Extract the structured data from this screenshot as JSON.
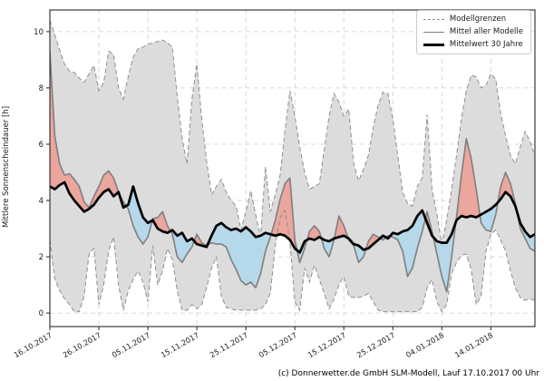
{
  "figure": {
    "y_axis_label": "Mittlere Sonnenscheindauer [h]",
    "credit": "(c) Donnerwetter.de GmbH SLM-Modell, Lauf 17.10.2017 00 Uhr"
  },
  "legend": {
    "position": "upper right",
    "items": [
      {
        "label": "Modellgrenzen",
        "style": "dashed-gray"
      },
      {
        "label": "Mittel aller Modelle",
        "style": "solid-gray"
      },
      {
        "label": "Mittelwert 30 Jahre",
        "style": "solid-black"
      }
    ]
  },
  "colors": {
    "band_fill": "#dcdcdc",
    "band_edge": "#8f8f8f",
    "above_fill": "#eba69e",
    "below_fill": "#b5d8ea",
    "model_mean_line": "#7f7f7f",
    "climate_line": "#000000",
    "grid": "#cdcdcd",
    "frame": "#262626",
    "text": "#1a1a1a"
  },
  "chart_data": {
    "type": "line",
    "title": "",
    "xlabel": "",
    "ylabel": "Mittlere Sonnenscheindauer [h]",
    "grid": true,
    "legend_position": "upper right",
    "x_unit": "days since 16.10.2017 (daily values)",
    "xlim": [
      0,
      99
    ],
    "ylim": [
      -0.48,
      10.77
    ],
    "y_ticks": [
      0,
      2,
      4,
      6,
      8,
      10
    ],
    "x_tick_days": [
      0,
      10,
      20,
      30,
      40,
      50,
      60,
      70,
      80,
      90
    ],
    "x_tick_labels": [
      "16.10.2017",
      "26.10.2017",
      "05.11.2017",
      "15.11.2017",
      "25.11.2017",
      "05.12.2017",
      "15.12.2017",
      "25.12.2017",
      "04.01.2018",
      "14.01.2018"
    ],
    "series": [
      {
        "name": "Modellgrenze oben",
        "role": "upper_bound",
        "style": "dashed",
        "values": [
          10.4,
          9.9,
          9.35,
          8.85,
          8.6,
          8.55,
          8.35,
          8.2,
          8.5,
          8.8,
          7.9,
          8.2,
          9.3,
          9.2,
          8.0,
          7.6,
          8.4,
          9.1,
          9.4,
          9.45,
          9.55,
          9.6,
          9.65,
          9.7,
          9.6,
          9.45,
          7.7,
          6.2,
          5.3,
          7.6,
          8.85,
          6.9,
          5.4,
          4.2,
          4.5,
          4.75,
          4.3,
          4.0,
          3.8,
          2.95,
          3.6,
          4.35,
          3.5,
          2.7,
          5.2,
          3.6,
          4.2,
          4.9,
          6.5,
          7.9,
          7.0,
          5.9,
          5.0,
          4.4,
          4.5,
          4.6,
          5.8,
          7.0,
          7.8,
          7.5,
          7.0,
          7.25,
          5.3,
          4.7,
          5.1,
          5.6,
          6.6,
          7.4,
          7.85,
          7.8,
          6.9,
          5.6,
          4.3,
          3.9,
          3.8,
          4.5,
          4.8,
          7.05,
          4.4,
          3.5,
          2.45,
          3.3,
          4.4,
          5.6,
          6.9,
          7.9,
          8.45,
          8.4,
          8.0,
          8.1,
          8.5,
          8.3,
          7.1,
          6.3,
          5.6,
          5.3,
          5.9,
          6.45,
          6.1,
          5.6
        ]
      },
      {
        "name": "Modellgrenze unten",
        "role": "lower_bound",
        "style": "dashed",
        "values": [
          2.6,
          1.2,
          0.8,
          0.5,
          0.3,
          0.05,
          0.05,
          0.6,
          2.1,
          2.3,
          0.3,
          1.0,
          2.2,
          2.7,
          1.0,
          0.1,
          0.8,
          1.2,
          1.5,
          1.1,
          0.4,
          2.4,
          1.0,
          1.5,
          2.3,
          1.9,
          0.8,
          0.1,
          0.1,
          0.3,
          0.15,
          0.3,
          0.9,
          1.6,
          2.0,
          0.6,
          0.2,
          0.15,
          0.1,
          0.1,
          0.1,
          0.1,
          0.1,
          0.15,
          0.3,
          0.7,
          2.4,
          3.4,
          3.65,
          2.5,
          0.4,
          0.1,
          1.6,
          1.1,
          1.7,
          1.2,
          0.7,
          0.15,
          0.5,
          1.0,
          1.3,
          0.6,
          0.55,
          0.55,
          0.6,
          0.7,
          0.4,
          0.1,
          0.05,
          0.05,
          0.05,
          0.05,
          0.05,
          0.05,
          0.05,
          0.05,
          0.2,
          0.9,
          1.2,
          0.4,
          0.05,
          0.3,
          1.4,
          1.8,
          2.05,
          2.1,
          1.55,
          0.3,
          0.6,
          2.2,
          2.8,
          2.95,
          2.6,
          2.2,
          1.5,
          0.9,
          0.55,
          0.45,
          0.5,
          0.45
        ]
      },
      {
        "name": "Mittel aller Modelle",
        "role": "model_mean",
        "style": "solid",
        "values": [
          9.3,
          6.3,
          5.3,
          4.9,
          4.95,
          4.75,
          4.5,
          3.95,
          3.75,
          4.15,
          4.5,
          4.9,
          5.05,
          4.8,
          4.3,
          3.95,
          3.7,
          3.1,
          2.7,
          2.45,
          2.7,
          3.35,
          3.4,
          3.6,
          3.1,
          2.8,
          2.0,
          1.8,
          2.1,
          2.35,
          2.8,
          2.5,
          2.4,
          2.5,
          2.45,
          2.45,
          2.35,
          1.9,
          1.55,
          1.15,
          1.0,
          1.1,
          0.9,
          1.4,
          2.2,
          2.7,
          3.3,
          4.05,
          4.6,
          4.8,
          2.6,
          1.8,
          2.3,
          2.9,
          3.1,
          2.9,
          2.3,
          2.0,
          2.6,
          3.45,
          3.1,
          2.6,
          2.4,
          1.8,
          2.0,
          2.55,
          2.8,
          2.7,
          2.6,
          2.75,
          2.7,
          2.6,
          2.2,
          1.3,
          1.6,
          2.3,
          2.9,
          3.6,
          2.9,
          2.1,
          1.3,
          0.75,
          2.0,
          3.4,
          4.9,
          6.2,
          5.5,
          4.4,
          3.2,
          2.95,
          2.9,
          3.5,
          4.5,
          5.0,
          4.6,
          3.9,
          3.0,
          2.65,
          2.3,
          2.2
        ]
      },
      {
        "name": "Mittelwert 30 Jahre",
        "role": "climate_mean",
        "style": "solid-thick",
        "values": [
          4.5,
          4.4,
          4.55,
          4.65,
          4.25,
          4.0,
          3.8,
          3.6,
          3.7,
          3.85,
          4.1,
          4.3,
          4.4,
          4.15,
          4.3,
          3.75,
          3.85,
          4.5,
          3.9,
          3.4,
          3.2,
          3.3,
          3.0,
          2.9,
          2.85,
          2.95,
          2.75,
          2.85,
          2.55,
          2.65,
          2.45,
          2.4,
          2.35,
          2.75,
          3.1,
          3.2,
          3.05,
          2.95,
          3.0,
          2.9,
          3.05,
          2.9,
          2.7,
          2.75,
          2.85,
          2.8,
          2.75,
          2.8,
          2.75,
          2.6,
          2.3,
          2.15,
          2.55,
          2.65,
          2.6,
          2.7,
          2.6,
          2.55,
          2.65,
          2.7,
          2.75,
          2.65,
          2.45,
          2.4,
          2.25,
          2.3,
          2.45,
          2.6,
          2.75,
          2.65,
          2.85,
          2.8,
          2.9,
          2.95,
          3.1,
          3.45,
          3.65,
          3.2,
          2.75,
          2.55,
          2.5,
          2.5,
          2.8,
          3.3,
          3.45,
          3.4,
          3.45,
          3.4,
          3.5,
          3.6,
          3.7,
          3.85,
          4.05,
          4.3,
          4.15,
          3.8,
          3.2,
          2.9,
          2.7,
          2.8
        ]
      }
    ],
    "fills": [
      {
        "between": [
          "upper_bound",
          "lower_bound"
        ],
        "color": "#dcdcdc",
        "meaning": "Modellgrenzen Spannweite"
      },
      {
        "between": [
          "model_mean",
          "climate_mean"
        ],
        "when": "model_mean > climate_mean",
        "color": "#eba69e"
      },
      {
        "between": [
          "model_mean",
          "climate_mean"
        ],
        "when": "model_mean < climate_mean",
        "color": "#b5d8ea"
      }
    ]
  }
}
